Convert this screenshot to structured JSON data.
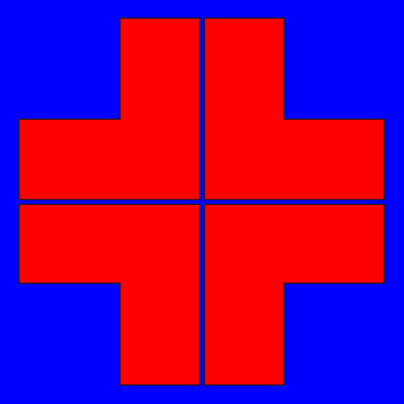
{
  "colors": {
    "background": "#0000ff",
    "cross_fill": "#ff0000",
    "outline": "#1a1a1a"
  },
  "figure": {
    "description_shape": "plus-sign cross divided into four L-shaped quadrants"
  }
}
